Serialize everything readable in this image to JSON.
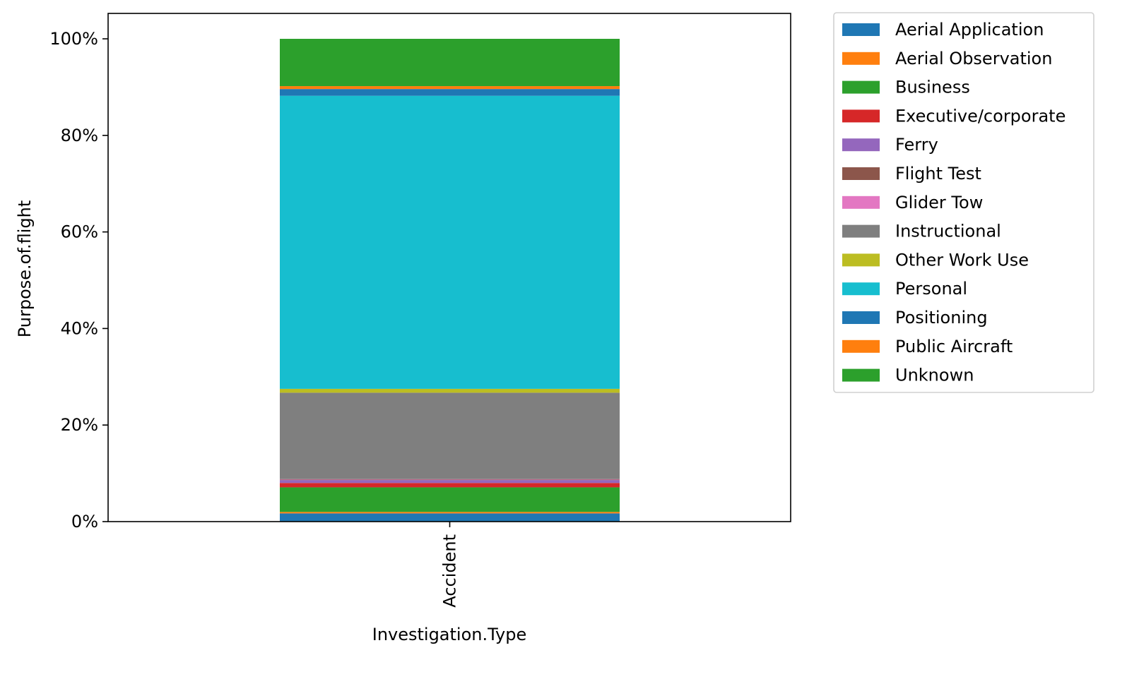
{
  "chart_data": {
    "type": "bar",
    "stacked": true,
    "normalized_percent": true,
    "categories": [
      "Accident"
    ],
    "xlabel": "Investigation.Type",
    "ylabel": "Purpose.of.flight",
    "ylim": [
      0,
      100
    ],
    "yticks": [
      "0%",
      "20%",
      "40%",
      "60%",
      "80%",
      "100%"
    ],
    "ytick_values": [
      0,
      20,
      40,
      60,
      80,
      100
    ],
    "legend_placement": "outside-upper-right",
    "series": [
      {
        "name": "Aerial Application",
        "values": [
          1.7
        ],
        "color": "#1f77b4"
      },
      {
        "name": "Aerial Observation",
        "values": [
          0.3
        ],
        "color": "#ff7f0e"
      },
      {
        "name": "Business",
        "values": [
          5.1
        ],
        "color": "#2ca02c"
      },
      {
        "name": "Executive/corporate",
        "values": [
          0.9
        ],
        "color": "#d62728"
      },
      {
        "name": "Ferry",
        "values": [
          0.6
        ],
        "color": "#9467bd"
      },
      {
        "name": "Flight Test",
        "values": [
          0.1
        ],
        "color": "#8c564b"
      },
      {
        "name": "Glider Tow",
        "values": [
          0.1
        ],
        "color": "#e377c2"
      },
      {
        "name": "Instructional",
        "values": [
          17.9
        ],
        "color": "#7f7f7f"
      },
      {
        "name": "Other Work Use",
        "values": [
          0.8
        ],
        "color": "#bcbd22"
      },
      {
        "name": "Personal",
        "values": [
          60.7
        ],
        "color": "#17becf"
      },
      {
        "name": "Positioning",
        "values": [
          1.4
        ],
        "color": "#1f77b4"
      },
      {
        "name": "Public Aircraft",
        "values": [
          0.6
        ],
        "color": "#ff7f0e"
      },
      {
        "name": "Unknown",
        "values": [
          9.8
        ],
        "color": "#2ca02c"
      }
    ]
  }
}
